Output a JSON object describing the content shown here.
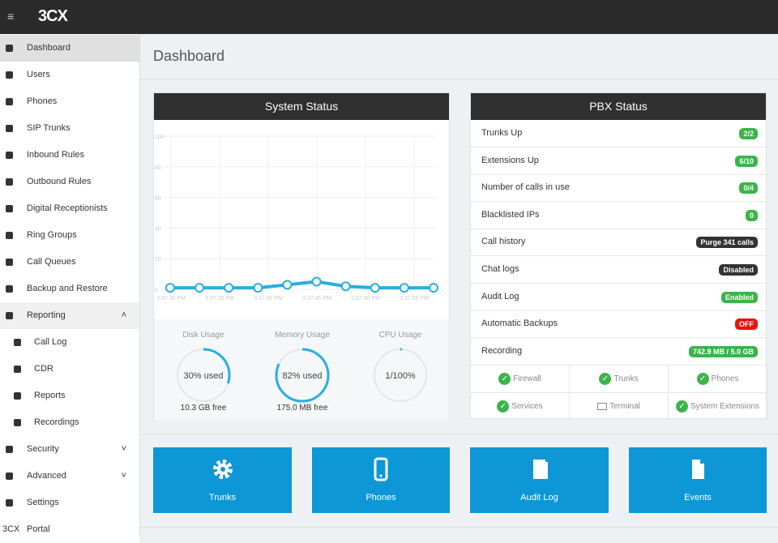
{
  "header": {
    "brand": "3CX"
  },
  "sidebar": {
    "items": [
      {
        "label": "Dashboard"
      },
      {
        "label": "Users"
      },
      {
        "label": "Phones"
      },
      {
        "label": "SIP Trunks"
      },
      {
        "label": "Inbound Rules"
      },
      {
        "label": "Outbound Rules"
      },
      {
        "label": "Digital Receptionists"
      },
      {
        "label": "Ring Groups"
      },
      {
        "label": "Call Queues"
      },
      {
        "label": "Backup and Restore"
      },
      {
        "label": "Reporting",
        "expanded": true,
        "children": [
          {
            "label": "Call Log"
          },
          {
            "label": "CDR"
          },
          {
            "label": "Reports"
          },
          {
            "label": "Recordings"
          }
        ]
      },
      {
        "label": "Security",
        "expanded": false
      },
      {
        "label": "Advanced",
        "expanded": false
      },
      {
        "label": "Settings"
      },
      {
        "label": "Portal",
        "prefix": "3CX"
      }
    ]
  },
  "page": {
    "title": "Dashboard"
  },
  "system_status": {
    "title": "System Status",
    "chart": {
      "type": "line",
      "color": "#29aee0",
      "xtick_labels": [
        "3:37:30 PM",
        "3:37:35 PM",
        "3:37:40 PM",
        "3:37:45 PM",
        "3:37:50 PM",
        "3:37:55 PM"
      ],
      "values": [
        1,
        1,
        1,
        1,
        3,
        5,
        2,
        1,
        1,
        1
      ],
      "ylim": [
        0,
        100
      ],
      "yticks": [
        0,
        20,
        40,
        60,
        80,
        100
      ],
      "grid": true
    },
    "gauges": [
      {
        "label": "Disk Usage",
        "value": 30,
        "value_label": "30% used",
        "footer": "10.3 GB free"
      },
      {
        "label": "Memory Usage",
        "value": 82,
        "value_label": "82% used",
        "footer": "175.0 MB free"
      },
      {
        "label": "CPU Usage",
        "value": 1,
        "value_label": "1/100%"
      }
    ]
  },
  "pbx_status": {
    "title": "PBX Status",
    "rows": [
      {
        "label": "Trunks Up",
        "badge": "2/2",
        "color": "#3cb44b"
      },
      {
        "label": "Extensions Up",
        "badge": "6/10",
        "color": "#3cb44b"
      },
      {
        "label": "Number of calls in use",
        "badge": "0/4",
        "color": "#3cb44b"
      },
      {
        "label": "Blacklisted IPs",
        "badge": "0",
        "color": "#3cb44b"
      },
      {
        "label": "Call history",
        "badge": "Purge 341 calls",
        "color": "#333333"
      },
      {
        "label": "Chat logs",
        "badge": "Disabled",
        "color": "#333333"
      },
      {
        "label": "Audit Log",
        "badge": "Enabled",
        "color": "#3cb44b"
      },
      {
        "label": "Automatic Backups",
        "badge": "OFF",
        "color": "#e8130f"
      },
      {
        "label": "Recording",
        "badge": "742.9 MB / 5.0 GB",
        "color": "#3cb44b"
      }
    ],
    "checks": [
      "Firewall",
      "Trunks",
      "Phones",
      "Services",
      "Terminal",
      "System Extensions"
    ]
  },
  "tiles": [
    {
      "label": "Trunks"
    },
    {
      "label": "Phones"
    },
    {
      "label": "Audit Log"
    },
    {
      "label": "Events"
    }
  ]
}
